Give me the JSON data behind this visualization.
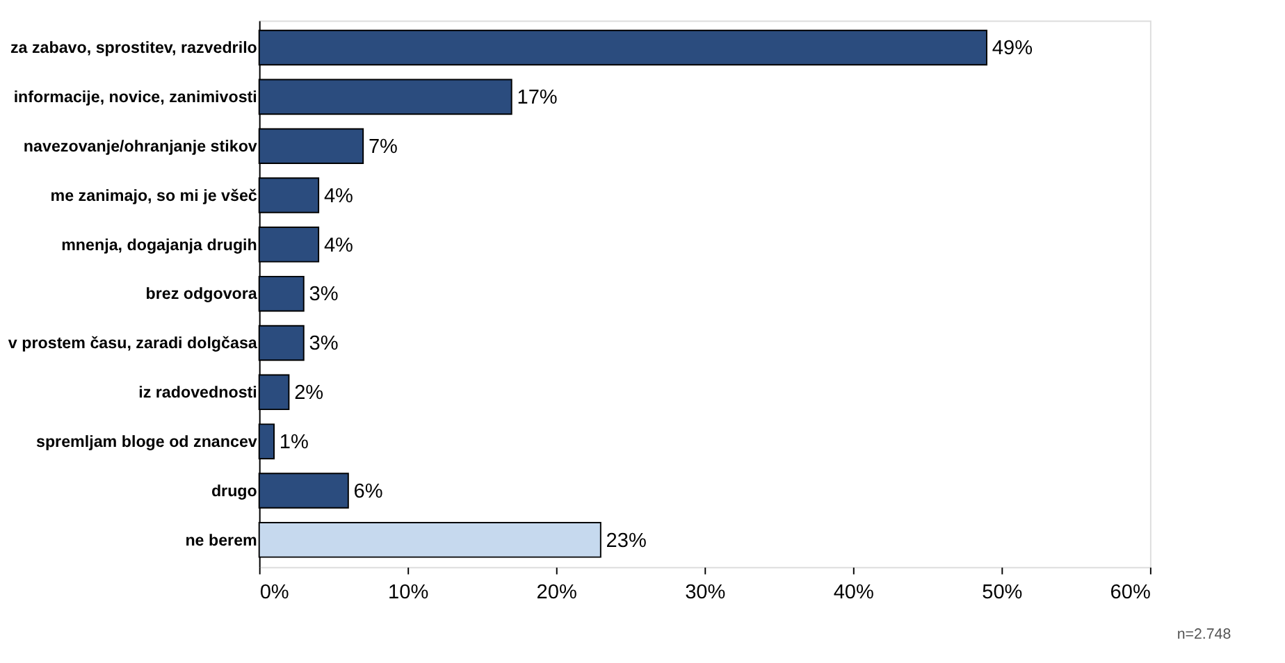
{
  "chart_data": {
    "type": "bar",
    "orientation": "horizontal",
    "categories": [
      "za zabavo, sprostitev, razvedrilo",
      "informacije, novice, zanimivosti",
      "navezovanje/ohranjanje stikov",
      "me zanimajo, so mi je všeč",
      "mnenja, dogajanja drugih",
      "brez odgovora",
      "v prostem času, zaradi dolgčasa",
      "iz radovednosti",
      "spremljam bloge od znancev",
      "drugo",
      "ne berem"
    ],
    "values": [
      49,
      17,
      7,
      4,
      4,
      3,
      3,
      2,
      1,
      6,
      23
    ],
    "value_labels": [
      "49%",
      "17%",
      "7%",
      "4%",
      "4%",
      "3%",
      "3%",
      "2%",
      "1%",
      "6%",
      "23%"
    ],
    "colors": [
      "#2b4c7e",
      "#2b4c7e",
      "#2b4c7e",
      "#2b4c7e",
      "#2b4c7e",
      "#2b4c7e",
      "#2b4c7e",
      "#2b4c7e",
      "#2b4c7e",
      "#2b4c7e",
      "#c6d9ee"
    ],
    "xlim": [
      0,
      60
    ],
    "xticks": [
      {
        "value": 0,
        "label": "0%"
      },
      {
        "value": 10,
        "label": "10%"
      },
      {
        "value": 20,
        "label": "20%"
      },
      {
        "value": 30,
        "label": "30%"
      },
      {
        "value": 40,
        "label": "40%"
      },
      {
        "value": 50,
        "label": "50%"
      },
      {
        "value": 60,
        "label": "60%"
      }
    ],
    "grid": false,
    "annotations": [
      "n=2.748"
    ]
  }
}
